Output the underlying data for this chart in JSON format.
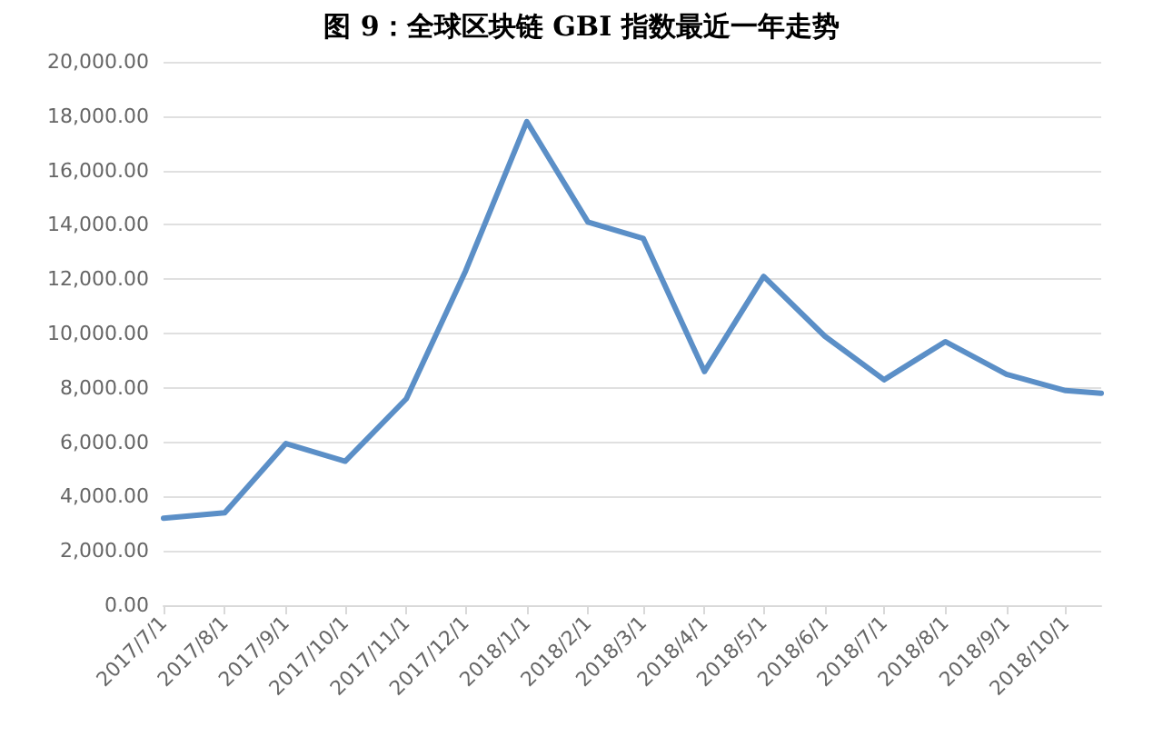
{
  "chart_data": {
    "type": "line",
    "title": "图 9：全球区块链 GBI 指数最近一年走势",
    "x": [
      "2017-07-01",
      "2017-08-01",
      "2017-09-01",
      "2017-10-01",
      "2017-11-01",
      "2017-12-01",
      "2018-01-01",
      "2018-02-01",
      "2018-03-01",
      "2018-04-01",
      "2018-05-01",
      "2018-06-01",
      "2018-07-01",
      "2018-08-01",
      "2018-09-01",
      "2018-10-01",
      "2018-10-19"
    ],
    "series": [
      {
        "color": "#5b8fc7",
        "values": [
          3200,
          3400,
          5950,
          5300,
          7600,
          12300,
          17800,
          14100,
          13500,
          8600,
          12100,
          9900,
          8300,
          9700,
          8500,
          7900,
          7800
        ]
      }
    ],
    "xlim": [
      "2017-07-01",
      "2018-10-19"
    ],
    "xticks": [
      {
        "value": "2017-07-01",
        "label": "2017/7/1"
      },
      {
        "value": "2017-08-01",
        "label": "2017/8/1"
      },
      {
        "value": "2017-09-01",
        "label": "2017/9/1"
      },
      {
        "value": "2017-10-01",
        "label": "2017/10/1"
      },
      {
        "value": "2017-11-01",
        "label": "2017/11/1"
      },
      {
        "value": "2017-12-01",
        "label": "2017/12/1"
      },
      {
        "value": "2018-01-01",
        "label": "2018/1/1"
      },
      {
        "value": "2018-02-01",
        "label": "2018/2/1"
      },
      {
        "value": "2018-03-01",
        "label": "2018/3/1"
      },
      {
        "value": "2018-04-01",
        "label": "2018/4/1"
      },
      {
        "value": "2018-05-01",
        "label": "2018/5/1"
      },
      {
        "value": "2018-06-01",
        "label": "2018/6/1"
      },
      {
        "value": "2018-07-01",
        "label": "2018/7/1"
      },
      {
        "value": "2018-08-01",
        "label": "2018/8/1"
      },
      {
        "value": "2018-09-01",
        "label": "2018/9/1"
      },
      {
        "value": "2018-10-01",
        "label": "2018/10/1"
      }
    ],
    "ylim": [
      0,
      20000
    ],
    "yticks": [
      {
        "value": 0,
        "label": "0.00"
      },
      {
        "value": 2000,
        "label": "2,000.00"
      },
      {
        "value": 4000,
        "label": "4,000.00"
      },
      {
        "value": 6000,
        "label": "6,000.00"
      },
      {
        "value": 8000,
        "label": "8,000.00"
      },
      {
        "value": 10000,
        "label": "10,000.00"
      },
      {
        "value": 12000,
        "label": "12,000.00"
      },
      {
        "value": 14000,
        "label": "14,000.00"
      },
      {
        "value": 16000,
        "label": "16,000.00"
      },
      {
        "value": 18000,
        "label": "18,000.00"
      },
      {
        "value": 20000,
        "label": "20,000.00"
      }
    ],
    "grid": "y",
    "marker": "none",
    "line_style": "solid"
  }
}
